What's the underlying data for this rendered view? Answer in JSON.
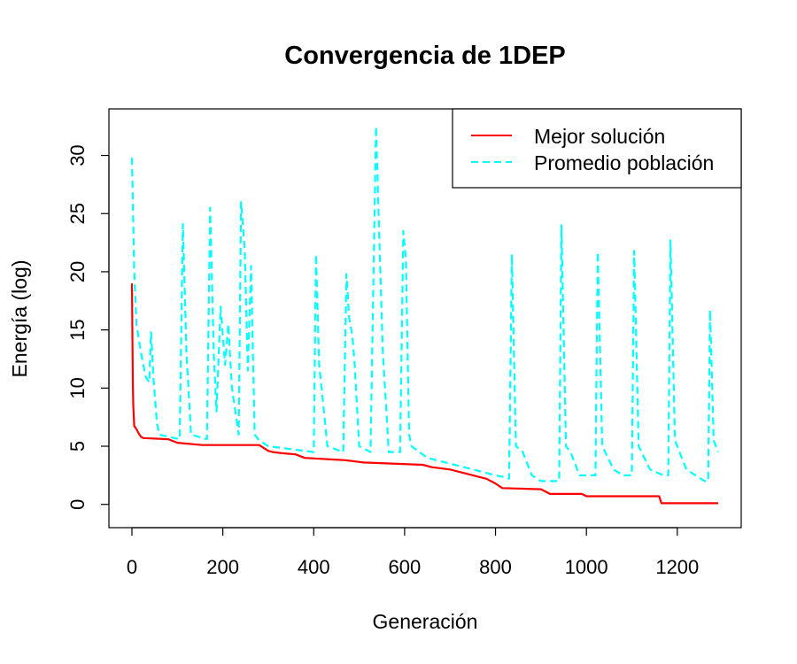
{
  "chart_data": {
    "type": "line",
    "title": "Convergencia de 1DEP",
    "xlabel": "Generación",
    "ylabel": "Energía (log)",
    "xlim": [
      0,
      1290
    ],
    "ylim": [
      -2,
      34
    ],
    "x_ticks": [
      0,
      200,
      400,
      600,
      800,
      1000,
      1200
    ],
    "y_ticks": [
      0,
      5,
      10,
      15,
      20,
      25,
      30
    ],
    "x_tick_labels": [
      "0",
      "200",
      "400",
      "600",
      "800",
      "1000",
      "1200"
    ],
    "y_tick_labels": [
      "0",
      "5",
      "10",
      "15",
      "20",
      "25",
      "30"
    ],
    "grid": false,
    "legend_position": "top-right",
    "series": [
      {
        "name": "Mejor solución",
        "color": "#ff0000",
        "style": "solid",
        "points": [
          [
            0,
            19.0
          ],
          [
            2,
            10.5
          ],
          [
            3,
            8.5
          ],
          [
            5,
            6.7
          ],
          [
            8,
            6.6
          ],
          [
            12,
            6.3
          ],
          [
            15,
            6.1
          ],
          [
            20,
            5.8
          ],
          [
            25,
            5.7
          ],
          [
            80,
            5.6
          ],
          [
            100,
            5.3
          ],
          [
            155,
            5.1
          ],
          [
            280,
            5.1
          ],
          [
            300,
            4.6
          ],
          [
            310,
            4.5
          ],
          [
            330,
            4.4
          ],
          [
            360,
            4.3
          ],
          [
            380,
            4.0
          ],
          [
            470,
            3.8
          ],
          [
            510,
            3.6
          ],
          [
            640,
            3.4
          ],
          [
            660,
            3.2
          ],
          [
            700,
            3.0
          ],
          [
            720,
            2.8
          ],
          [
            740,
            2.6
          ],
          [
            760,
            2.4
          ],
          [
            780,
            2.2
          ],
          [
            800,
            1.8
          ],
          [
            815,
            1.4
          ],
          [
            900,
            1.3
          ],
          [
            920,
            0.9
          ],
          [
            990,
            0.9
          ],
          [
            1000,
            0.7
          ],
          [
            1160,
            0.7
          ],
          [
            1165,
            0.1
          ],
          [
            1290,
            0.1
          ]
        ]
      },
      {
        "name": "Promedio población",
        "color": "#00ffff",
        "style": "dashed",
        "points": [
          [
            0,
            29.8
          ],
          [
            5,
            20.0
          ],
          [
            10,
            15.5
          ],
          [
            20,
            13.0
          ],
          [
            30,
            11.0
          ],
          [
            38,
            10.5
          ],
          [
            42,
            14.8
          ],
          [
            48,
            10.5
          ],
          [
            55,
            7.0
          ],
          [
            60,
            6.0
          ],
          [
            105,
            5.6
          ],
          [
            112,
            24.1
          ],
          [
            120,
            13.0
          ],
          [
            130,
            6.0
          ],
          [
            165,
            5.6
          ],
          [
            172,
            25.5
          ],
          [
            180,
            13.0
          ],
          [
            186,
            8.0
          ],
          [
            195,
            17.0
          ],
          [
            205,
            12.0
          ],
          [
            212,
            15.5
          ],
          [
            220,
            10.0
          ],
          [
            235,
            6.0
          ],
          [
            240,
            26.0
          ],
          [
            248,
            22.0
          ],
          [
            255,
            11.5
          ],
          [
            262,
            20.5
          ],
          [
            270,
            6.0
          ],
          [
            280,
            5.5
          ],
          [
            300,
            5.0
          ],
          [
            400,
            4.5
          ],
          [
            405,
            21.5
          ],
          [
            412,
            12.0
          ],
          [
            420,
            9.0
          ],
          [
            430,
            5.0
          ],
          [
            465,
            4.5
          ],
          [
            472,
            19.8
          ],
          [
            478,
            16.0
          ],
          [
            485,
            14.5
          ],
          [
            490,
            12.0
          ],
          [
            500,
            5.0
          ],
          [
            525,
            4.5
          ],
          [
            537,
            32.5
          ],
          [
            545,
            22.0
          ],
          [
            552,
            13.0
          ],
          [
            560,
            8.0
          ],
          [
            565,
            4.5
          ],
          [
            590,
            4.5
          ],
          [
            597,
            23.5
          ],
          [
            603,
            21.0
          ],
          [
            610,
            6.0
          ],
          [
            615,
            5.0
          ],
          [
            650,
            4.0
          ],
          [
            700,
            3.5
          ],
          [
            750,
            3.0
          ],
          [
            800,
            2.5
          ],
          [
            825,
            2.3
          ],
          [
            830,
            2.2
          ],
          [
            836,
            21.5
          ],
          [
            845,
            5.0
          ],
          [
            860,
            4.5
          ],
          [
            880,
            2.5
          ],
          [
            900,
            2.0
          ],
          [
            940,
            2.0
          ],
          [
            945,
            24.0
          ],
          [
            955,
            5.0
          ],
          [
            965,
            4.5
          ],
          [
            985,
            2.5
          ],
          [
            1000,
            2.5
          ],
          [
            1020,
            2.5
          ],
          [
            1025,
            21.7
          ],
          [
            1035,
            5.0
          ],
          [
            1060,
            3.0
          ],
          [
            1080,
            2.5
          ],
          [
            1100,
            2.5
          ],
          [
            1105,
            21.8
          ],
          [
            1115,
            5.0
          ],
          [
            1140,
            3.0
          ],
          [
            1170,
            2.5
          ],
          [
            1180,
            2.5
          ],
          [
            1185,
            22.7
          ],
          [
            1195,
            5.5
          ],
          [
            1220,
            3.0
          ],
          [
            1260,
            2.0
          ],
          [
            1268,
            2.0
          ],
          [
            1272,
            16.7
          ],
          [
            1280,
            5.5
          ],
          [
            1290,
            4.5
          ]
        ]
      }
    ]
  }
}
